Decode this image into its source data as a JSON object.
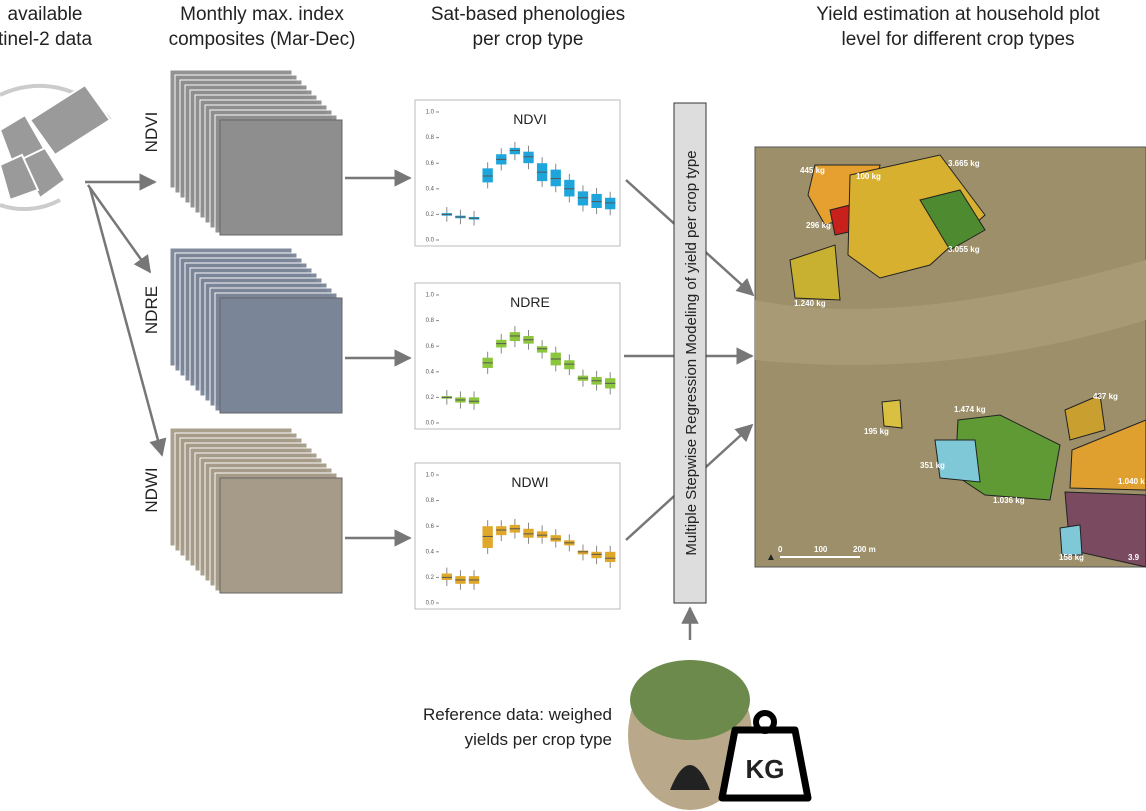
{
  "headers": [
    {
      "lines": [
        "available",
        "tinel-2 data"
      ]
    },
    {
      "lines": [
        "Monthly max. index",
        "composites (Mar-Dec)"
      ]
    },
    {
      "lines": [
        "Sat-based phenologies",
        "per crop type"
      ]
    },
    {
      "lines": [
        "Yield estimation at household plot",
        "level for different crop types"
      ]
    }
  ],
  "stacks": [
    {
      "label": "NDVI"
    },
    {
      "label": "NDRE"
    },
    {
      "label": "NDWI"
    }
  ],
  "plots": {
    "yticks": [
      {
        "value": 0,
        "label": "0.0"
      },
      {
        "value": 0.2,
        "label": "0.2"
      },
      {
        "value": 0.4,
        "label": "0.4"
      },
      {
        "value": 0.6,
        "label": "0.6"
      },
      {
        "value": 0.8,
        "label": "0.8"
      },
      {
        "value": 1,
        "label": "1.0"
      }
    ],
    "ylim": [
      0,
      1
    ],
    "items": [
      {
        "title": "NDVI",
        "color": "#1ea6dc",
        "median": [
          0.2,
          0.18,
          0.17,
          0.5,
          0.63,
          0.7,
          0.65,
          0.53,
          0.48,
          0.4,
          0.33,
          0.3,
          0.29
        ],
        "q1": [
          0.19,
          0.17,
          0.16,
          0.45,
          0.59,
          0.67,
          0.6,
          0.46,
          0.42,
          0.34,
          0.27,
          0.25,
          0.24
        ],
        "q3": [
          0.21,
          0.19,
          0.18,
          0.56,
          0.67,
          0.72,
          0.69,
          0.6,
          0.55,
          0.47,
          0.38,
          0.36,
          0.33
        ]
      },
      {
        "title": "NDRE",
        "color": "#8cc63e",
        "median": [
          0.2,
          0.18,
          0.17,
          0.47,
          0.62,
          0.68,
          0.65,
          0.58,
          0.5,
          0.46,
          0.35,
          0.33,
          0.31
        ],
        "q1": [
          0.19,
          0.16,
          0.15,
          0.43,
          0.59,
          0.64,
          0.62,
          0.55,
          0.45,
          0.42,
          0.33,
          0.3,
          0.27
        ],
        "q3": [
          0.21,
          0.2,
          0.2,
          0.51,
          0.65,
          0.71,
          0.68,
          0.6,
          0.55,
          0.49,
          0.37,
          0.36,
          0.35
        ]
      },
      {
        "title": "NDWI",
        "color": "#e0a82a",
        "median": [
          0.2,
          0.18,
          0.18,
          0.52,
          0.57,
          0.58,
          0.54,
          0.53,
          0.5,
          0.47,
          0.4,
          0.38,
          0.35
        ],
        "q1": [
          0.18,
          0.15,
          0.15,
          0.43,
          0.53,
          0.55,
          0.51,
          0.51,
          0.48,
          0.45,
          0.38,
          0.35,
          0.32
        ],
        "q3": [
          0.23,
          0.21,
          0.21,
          0.6,
          0.6,
          0.61,
          0.58,
          0.56,
          0.53,
          0.49,
          0.41,
          0.4,
          0.4
        ]
      }
    ]
  },
  "model": {
    "label": "Multiple Stepwise Regression Modeling of yield per crop type"
  },
  "reference": {
    "lines": [
      "Reference data: weighed",
      "yields per crop type"
    ],
    "icon": "KG"
  },
  "map": {
    "labels": [
      "445 kg",
      "100 kg",
      "3.665 kg",
      "296 kg",
      "3.055 kg",
      "1.240 kg",
      "1.474 kg",
      "437 kg",
      "195 kg",
      "351 kg",
      "1.036 kg",
      "1.040 k",
      "158 kg",
      "3.9"
    ],
    "scale": [
      "0",
      "100",
      "200 m"
    ]
  }
}
